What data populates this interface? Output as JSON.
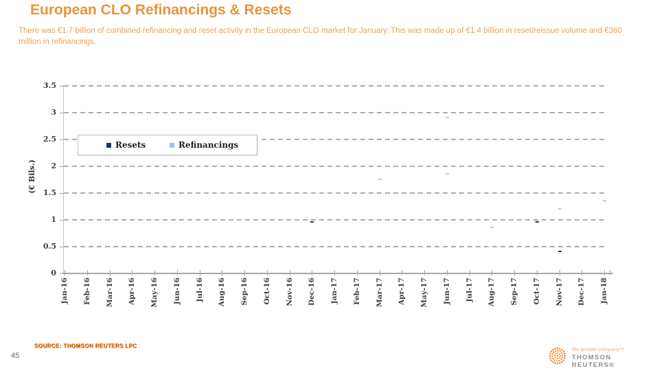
{
  "slide": {
    "title": "European CLO Refinancings & Resets",
    "subtitle": "There was €1.7 billion of combined refinancing and reset activity in the European CLO market for January. This was made up of €1.4 billion in reset/reissue volume and €360 million in refinancings.",
    "page_number": "45",
    "source": "SOURCE: THOMSON REUTERS LPC",
    "colors": {
      "title_orange": "#E4953A",
      "body_orange": "#F0A24A",
      "source_orange": "#E8730F"
    }
  },
  "logo": {
    "tagline": "the answer company™",
    "brand": "THOMSON REUTERS®",
    "color": "#F58220"
  },
  "chart_data": {
    "type": "bar",
    "stacked": true,
    "title": "",
    "xlabel": "",
    "ylabel": "(€ Bils.)",
    "ylim": [
      0,
      3.5
    ],
    "ytick_step": 0.5,
    "grid": "dashed-horizontal",
    "legend_position": "inside-top-left",
    "categories": [
      "Jan-16",
      "Feb-16",
      "Mar-16",
      "Apr-16",
      "May-16",
      "Jun-16",
      "Jul-16",
      "Aug-16",
      "Sep-16",
      "Oct-16",
      "Nov-16",
      "Dec-16",
      "Jan-17",
      "Feb-17",
      "Mar-17",
      "Apr-17",
      "May-17",
      "Jun-17",
      "Jul-17",
      "Aug-17",
      "Sep-17",
      "Oct-17",
      "Nov-17",
      "Dec-17",
      "Jan-18"
    ],
    "legend": [
      {
        "label": "Resets",
        "color": "#17375E"
      },
      {
        "label": "Refinancings",
        "color": "#9DC3E6"
      }
    ],
    "visible_marks": [
      {
        "category": "Dec-16",
        "series": "Resets",
        "value": 0.95
      },
      {
        "category": "Mar-17",
        "series": "Refinancings",
        "value": 1.75
      },
      {
        "category": "Jun-17",
        "series": "Refinancings",
        "value": 1.85
      },
      {
        "category": "Jun-17",
        "series": "Refinancings",
        "value": 2.9
      },
      {
        "category": "Aug-17",
        "series": "Refinancings",
        "value": 0.85
      },
      {
        "category": "Oct-17",
        "series": "Resets",
        "value": 0.95
      },
      {
        "category": "Nov-17",
        "series": "Resets",
        "value": 0.4
      },
      {
        "category": "Nov-17",
        "series": "Refinancings",
        "value": 1.2
      },
      {
        "category": "Jan-18",
        "series": "Refinancings",
        "value": 1.35
      }
    ]
  }
}
